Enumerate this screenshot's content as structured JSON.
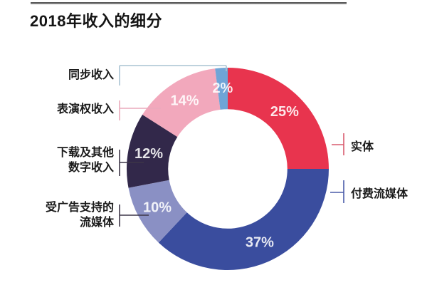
{
  "title": "2018年收入的细分",
  "chart_data": {
    "type": "pie",
    "subtype": "donut",
    "title": "2018年收入的细分",
    "start_angle_deg": 0,
    "direction": "clockwise",
    "hole_ratio": 0.59,
    "legend_position": "callout-labels",
    "segments": [
      {
        "id": "physical",
        "label": "实体",
        "value": 25,
        "display": "25%",
        "color": "#e8344e"
      },
      {
        "id": "paid-streaming",
        "label": "付费流媒体",
        "value": 37,
        "display": "37%",
        "color": "#3a4d9e"
      },
      {
        "id": "ad-supported-streaming",
        "label": "受广告支持的流媒体",
        "value": 10,
        "display": "10%",
        "color": "#8a90c4"
      },
      {
        "id": "downloads-other-digital",
        "label": "下载及其他数字收入",
        "value": 12,
        "display": "12%",
        "color": "#32284a"
      },
      {
        "id": "performance-rights",
        "label": "表演权收入",
        "value": 14,
        "display": "14%",
        "color": "#f2a8bc"
      },
      {
        "id": "synchronization",
        "label": "同步收入",
        "value": 2,
        "display": "2%",
        "color": "#6fa5d7"
      }
    ],
    "value_label_color": "rgba(255,255,255,0.88)"
  },
  "callouts": [
    {
      "id": "synchronization",
      "display": "同步收入",
      "line_color": "#a9c3d2"
    },
    {
      "id": "performance-rights",
      "display": "表演权收入",
      "line_color": "#eaa9bb"
    },
    {
      "id": "downloads-other-digital",
      "display": "下载及其他\n数字收入",
      "line_color": "#3d3648"
    },
    {
      "id": "ad-supported-streaming",
      "display": "受广告支持的\n流媒体",
      "line_color": "#3d3648"
    },
    {
      "id": "physical",
      "display": "实体",
      "line_color": "#d85b6e"
    },
    {
      "id": "paid-streaming",
      "display": "付费流媒体",
      "line_color": "#4a5ba8"
    }
  ]
}
